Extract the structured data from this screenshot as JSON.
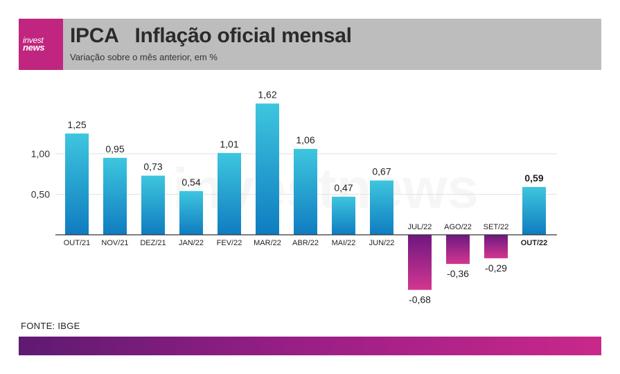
{
  "header": {
    "logo_line1": "invest",
    "logo_line2": "news",
    "title": "IPCA   Inflação oficial mensal",
    "subtitle": "Variação sobre o mês anterior, em %"
  },
  "watermark": "investnews",
  "source": "FONTE: IBGE",
  "colors": {
    "header_bg": "#bdbdbd",
    "brand": "#c0267f",
    "positive_top": "#3ec6de",
    "positive_bottom": "#0f7cc0",
    "negative_top": "#6e1780",
    "negative_bottom": "#d2378f"
  },
  "chart_data": {
    "type": "bar",
    "categories": [
      "OUT/21",
      "NOV/21",
      "DEZ/21",
      "JAN/22",
      "FEV/22",
      "MAR/22",
      "ABR/22",
      "MAI/22",
      "JUN/22",
      "JUL/22",
      "AGO/22",
      "SET/22",
      "OUT/22"
    ],
    "values": [
      1.25,
      0.95,
      0.73,
      0.54,
      1.01,
      1.62,
      1.06,
      0.47,
      0.67,
      -0.68,
      -0.36,
      -0.29,
      0.59
    ],
    "value_labels": [
      "1,25",
      "0,95",
      "0,73",
      "0,54",
      "1,01",
      "1,62",
      "1,06",
      "0,47",
      "0,67",
      "-0,68",
      "-0,36",
      "-0,29",
      "0,59"
    ],
    "yticks": [
      0.5,
      1.0
    ],
    "ytick_labels": [
      "0,50",
      "1,00"
    ],
    "highlight_index": 12,
    "grid": true
  }
}
